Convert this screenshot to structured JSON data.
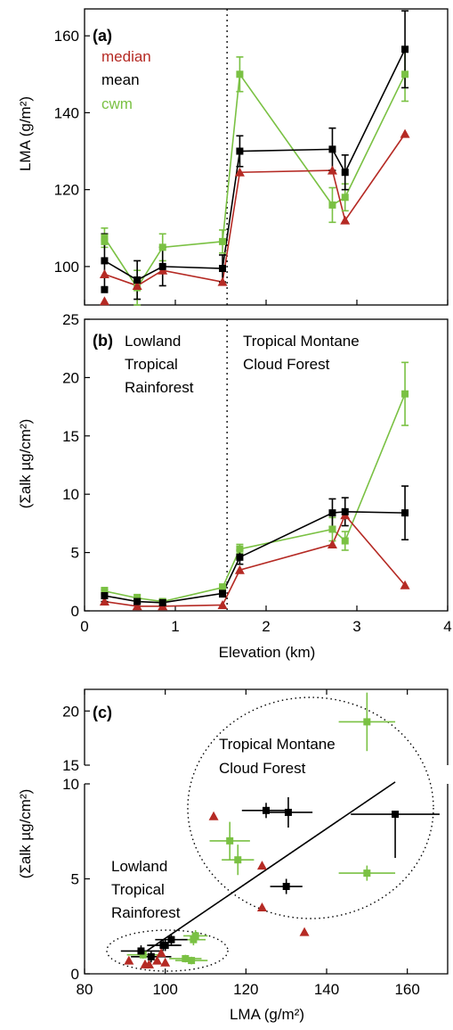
{
  "colors": {
    "median": "#b52a24",
    "mean": "#000000",
    "cwm": "#7ac143"
  },
  "chart_data": [
    {
      "type": "line",
      "panel": "(a)",
      "ylabel": "LMA (g/m²)",
      "xlim": [
        0,
        4
      ],
      "ylim": [
        90,
        167
      ],
      "yticks": [
        100,
        120,
        140,
        160
      ],
      "vline": 1.57,
      "legend": {
        "placement": "top-left",
        "entries": [
          "median",
          "mean",
          "cwm"
        ]
      },
      "x": [
        0.22,
        0.58,
        0.86,
        1.52,
        1.71,
        2.73,
        2.87,
        3.53
      ],
      "series": [
        {
          "name": "median",
          "values": [
            98,
            95,
            99,
            96,
            124.5,
            125,
            112,
            134.5
          ]
        },
        {
          "name": "mean",
          "values": [
            101.5,
            96.5,
            100,
            99.5,
            130,
            130.5,
            124.5,
            156.5
          ],
          "err": [
            7,
            5,
            5,
            3.5,
            4,
            5.5,
            4.5,
            10
          ]
        },
        {
          "name": "cwm",
          "values": [
            107.5,
            94.5,
            105,
            106.5,
            150,
            116,
            118,
            150
          ],
          "err": [
            2.5,
            4.5,
            3.5,
            3,
            4.5,
            4.5,
            3.5,
            7
          ]
        }
      ],
      "extra_points": [
        {
          "series": "median",
          "x": 0.22,
          "y": 91
        },
        {
          "series": "mean",
          "x": 0.22,
          "y": 94
        },
        {
          "series": "cwm",
          "x": 0.22,
          "y": 106.5
        }
      ]
    },
    {
      "type": "line",
      "panel": "(b)",
      "xlabel": "Elevation (km)",
      "ylabel": "(Σalk µg/cm²)",
      "xlim": [
        0,
        4
      ],
      "ylim": [
        0,
        25
      ],
      "xticks": [
        0,
        1,
        2,
        3,
        4
      ],
      "yticks": [
        0,
        5,
        10,
        15,
        20,
        25
      ],
      "vline": 1.57,
      "annotations": [
        {
          "lines": [
            "Lowland",
            "Tropical",
            "Rainforest"
          ]
        },
        {
          "lines": [
            "Tropical Montane",
            "Cloud Forest"
          ]
        }
      ],
      "x": [
        0.22,
        0.58,
        0.86,
        1.52,
        1.71,
        2.73,
        2.87,
        3.53
      ],
      "series": [
        {
          "name": "median",
          "values": [
            0.8,
            0.4,
            0.4,
            0.5,
            3.5,
            5.7,
            8.2,
            2.2
          ]
        },
        {
          "name": "mean",
          "values": [
            1.3,
            0.8,
            0.7,
            1.5,
            4.6,
            8.4,
            8.5,
            8.4
          ],
          "err": [
            0.5,
            0.2,
            0.2,
            0.3,
            0.6,
            1.2,
            1.2,
            2.3
          ]
        },
        {
          "name": "cwm",
          "values": [
            1.7,
            1.1,
            0.8,
            2.0,
            5.3,
            7.0,
            6.0,
            18.6
          ],
          "err": [
            0.3,
            0.3,
            0.2,
            0.3,
            0.4,
            1.0,
            0.8,
            2.7
          ]
        }
      ]
    },
    {
      "type": "scatter",
      "panel": "(c)",
      "xlabel": "LMA (g/m²)",
      "ylabel": "(Σalk µg/cm²)",
      "xlim": [
        80,
        170
      ],
      "ylim_lower": [
        0,
        10
      ],
      "ylim_upper": [
        15,
        22
      ],
      "xticks": [
        80,
        100,
        120,
        140,
        160
      ],
      "yticks": [
        0,
        5,
        10,
        15,
        20
      ],
      "annotations": [
        {
          "lines": [
            "Lowland",
            "Tropical",
            "Rainforest"
          ]
        },
        {
          "lines": [
            "Tropical Montane",
            "Cloud Forest"
          ]
        }
      ],
      "regression": [
        [
          94,
          1.0
        ],
        [
          157,
          10.1
        ]
      ],
      "series": [
        {
          "name": "median",
          "points": [
            [
              91,
              0.7
            ],
            [
              95,
              0.5
            ],
            [
              96,
              0.5
            ],
            [
              98,
              0.7
            ],
            [
              100,
              0.6
            ],
            [
              99,
              1.1
            ],
            [
              112,
              8.3
            ],
            [
              124,
              5.7
            ],
            [
              124,
              3.5
            ],
            [
              134.5,
              2.2
            ]
          ]
        },
        {
          "name": "mean",
          "points": [
            [
              96.5,
              0.9
            ],
            [
              94,
              1.2
            ],
            [
              100,
              1.5
            ],
            [
              101.5,
              1.8
            ],
            [
              99.5,
              1.5
            ],
            [
              130,
              4.6
            ],
            [
              125,
              8.6
            ],
            [
              130.5,
              8.5
            ],
            [
              157,
              8.4
            ]
          ],
          "xerr": [
            5,
            5,
            4,
            4,
            4,
            4,
            6,
            6,
            11
          ],
          "yerr": [
            0.3,
            0.3,
            0.3,
            0.3,
            0.3,
            0.4,
            0.4,
            0.8,
            2.3
          ]
        },
        {
          "name": "cwm",
          "points": [
            [
              94.5,
              1.0
            ],
            [
              106.5,
              0.7
            ],
            [
              105,
              0.8
            ],
            [
              107,
              1.8
            ],
            [
              107.5,
              2.0
            ],
            [
              116,
              7.0
            ],
            [
              118,
              6.0
            ],
            [
              150,
              5.3
            ],
            [
              150,
              19.0
            ]
          ],
          "xerr": [
            4,
            4,
            4,
            3,
            3,
            5,
            4,
            7,
            7
          ],
          "yerr": [
            0.2,
            0.2,
            0.2,
            0.3,
            0.3,
            1.0,
            0.8,
            0.4,
            2.7
          ]
        }
      ]
    }
  ]
}
